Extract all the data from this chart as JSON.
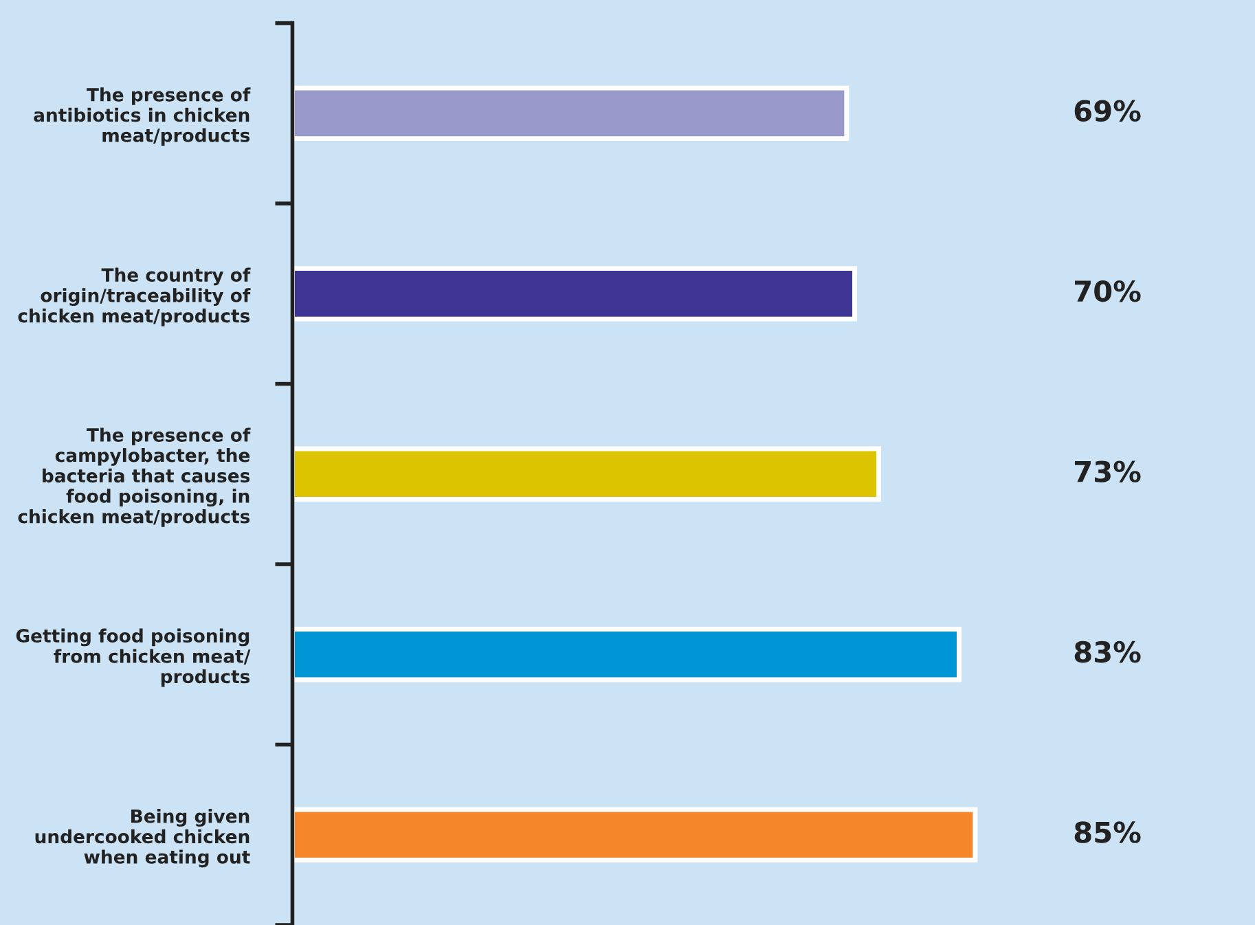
{
  "chart_data": {
    "type": "bar",
    "orientation": "horizontal",
    "categories": [
      "The presence of\nantibiotics in chicken\nmeat/products",
      "The country of\norigin/traceability of\nchicken meat/products",
      "The presence of\ncampylobacter, the\nbacteria that causes\nfood poisoning, in\nchicken meat/products",
      "Getting food poisoning\nfrom chicken meat/\nproducts",
      "Being given\nundercooked chicken\nwhen eating out"
    ],
    "values": [
      69,
      70,
      73,
      83,
      85
    ],
    "colors": [
      "#9999cc",
      "#3f3594",
      "#dcc500",
      "#0096d6",
      "#f5862a"
    ],
    "value_labels": [
      "69%",
      "70%",
      "73%",
      "83%",
      "85%"
    ],
    "grid": false,
    "legend": false
  }
}
